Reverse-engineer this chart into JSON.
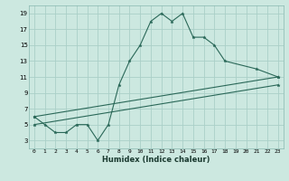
{
  "xlabel": "Humidex (Indice chaleur)",
  "ylabel": "",
  "bg_color": "#cce8e0",
  "grid_color": "#aacfc8",
  "line_color": "#2a6858",
  "xlim": [
    -0.5,
    23.5
  ],
  "ylim": [
    2,
    20
  ],
  "yticks": [
    3,
    5,
    7,
    9,
    11,
    13,
    15,
    17,
    19
  ],
  "xticks": [
    0,
    1,
    2,
    3,
    4,
    5,
    6,
    7,
    8,
    9,
    10,
    11,
    12,
    13,
    14,
    15,
    16,
    17,
    18,
    19,
    20,
    21,
    22,
    23
  ],
  "lines": [
    {
      "x": [
        0,
        1,
        2,
        3,
        4,
        5,
        6,
        7,
        8,
        9,
        10,
        11,
        12,
        13,
        14,
        15,
        16,
        17,
        18,
        21,
        23
      ],
      "y": [
        6,
        5,
        4,
        4,
        5,
        5,
        3,
        5,
        10,
        13,
        15,
        18,
        19,
        18,
        19,
        16,
        16,
        15,
        13,
        12,
        11
      ]
    },
    {
      "x": [
        0,
        23
      ],
      "y": [
        5,
        10
      ]
    },
    {
      "x": [
        0,
        23
      ],
      "y": [
        6,
        11
      ]
    }
  ]
}
